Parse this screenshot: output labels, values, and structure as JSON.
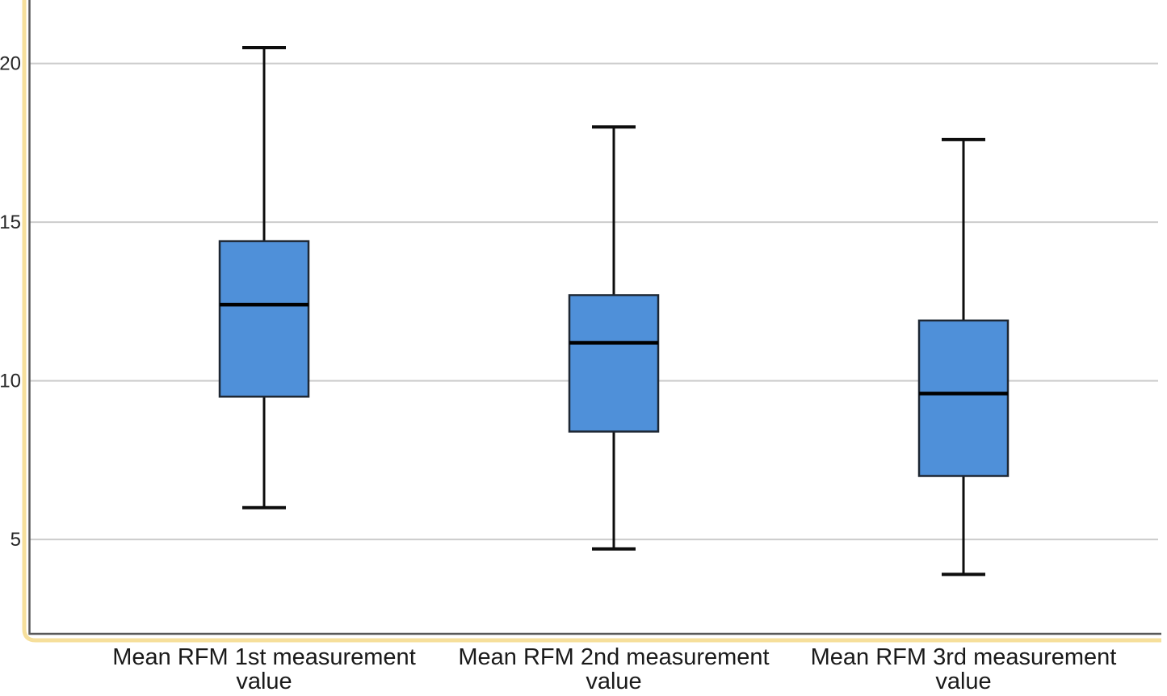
{
  "chart_data": {
    "type": "boxplot",
    "title": "",
    "xlabel": "",
    "ylabel": "",
    "ylim": [
      2,
      22
    ],
    "yticks": [
      20,
      15,
      10,
      5
    ],
    "grid": true,
    "legend": "none",
    "categories": [
      "Mean RFM 1st measurement value",
      "Mean RFM 2nd measurement value",
      "Mean RFM 3rd measurement value"
    ],
    "series": [
      {
        "label": "Mean RFM 1st measurement value",
        "whisker_low": 6.0,
        "q1": 9.5,
        "median": 12.4,
        "q3": 14.4,
        "whisker_high": 20.5
      },
      {
        "label": "Mean RFM 2nd measurement value",
        "whisker_low": 4.7,
        "q1": 8.4,
        "median": 11.2,
        "q3": 12.7,
        "whisker_high": 18.0
      },
      {
        "label": "Mean RFM 3rd measurement value",
        "whisker_low": 3.9,
        "q1": 7.0,
        "median": 9.6,
        "q3": 11.9,
        "whisker_high": 17.6
      }
    ],
    "colors": {
      "box_fill": "#4f90d9",
      "box_border": "#1e2733",
      "median": "#000000",
      "whisker": "#0d0d0d",
      "grid": "#cccccc",
      "axis": "#595959",
      "frame": "#f6df9b",
      "tick_text": "#262626",
      "background": "#ffffff"
    }
  }
}
